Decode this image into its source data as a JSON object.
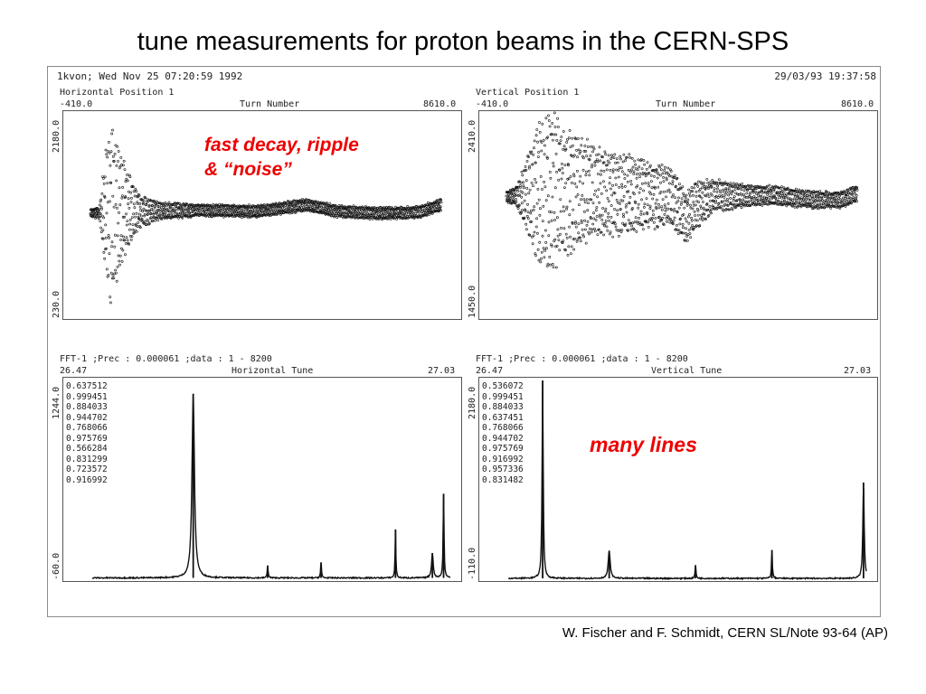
{
  "slide": {
    "title": "tune measurements for proton beams in the CERN-SPS",
    "citation": "W. Fischer and F. Schmidt, CERN SL/Note 93-64 (AP)"
  },
  "figure": {
    "header_left": "1kvon; Wed Nov 25 07:20:59 1992",
    "header_right": "29/03/93 19:37:58"
  },
  "annotations": {
    "top": [
      "fast decay, ripple",
      "& “noise”"
    ],
    "bottom": "many lines"
  },
  "colors": {
    "annotation": "#ee0000",
    "trace": "#111111"
  },
  "chart_data": [
    {
      "type": "scatter",
      "subtitle": "Horizontal Position 1",
      "xlabel": "Turn Number",
      "x_range_labels": [
        "-410.0",
        "8610.0"
      ],
      "y_range_labels": [
        "2180.0",
        "230.0"
      ],
      "xlim": [
        -410,
        8610
      ],
      "ylim": [
        230,
        2180
      ],
      "baseline": 1260,
      "envelope": [
        [
          -410,
          0
        ],
        [
          -200,
          40
        ],
        [
          0,
          60
        ],
        [
          200,
          760
        ],
        [
          300,
          900
        ],
        [
          450,
          700
        ],
        [
          700,
          400
        ],
        [
          1000,
          160
        ],
        [
          1500,
          90
        ],
        [
          2500,
          60
        ],
        [
          3500,
          60
        ],
        [
          5000,
          60
        ],
        [
          6500,
          60
        ],
        [
          8000,
          60
        ],
        [
          8610,
          60
        ]
      ],
      "wander": [
        [
          -410,
          -40
        ],
        [
          1000,
          -20
        ],
        [
          2500,
          -10
        ],
        [
          4000,
          -20
        ],
        [
          5200,
          40
        ],
        [
          6000,
          -20
        ],
        [
          7000,
          -40
        ],
        [
          8000,
          -30
        ],
        [
          8610,
          40
        ]
      ]
    },
    {
      "type": "scatter",
      "subtitle": "Vertical Position 1",
      "xlabel": "Turn Number",
      "x_range_labels": [
        "-410.0",
        "8610.0"
      ],
      "y_range_labels": [
        "2410.0",
        "1450.0"
      ],
      "xlim": [
        -410,
        8610
      ],
      "ylim": [
        1450,
        2410
      ],
      "baseline": 2020,
      "envelope": [
        [
          -410,
          20
        ],
        [
          0,
          40
        ],
        [
          300,
          180
        ],
        [
          700,
          430
        ],
        [
          1200,
          320
        ],
        [
          2000,
          230
        ],
        [
          3000,
          180
        ],
        [
          4000,
          140
        ],
        [
          4500,
          120
        ],
        [
          5000,
          80
        ],
        [
          6000,
          50
        ],
        [
          8000,
          40
        ],
        [
          8610,
          40
        ]
      ],
      "wander": [
        [
          -410,
          -10
        ],
        [
          1000,
          20
        ],
        [
          2500,
          10
        ],
        [
          3900,
          0
        ],
        [
          4300,
          -100
        ],
        [
          4600,
          -40
        ],
        [
          5000,
          0
        ],
        [
          6500,
          0
        ],
        [
          7500,
          -20
        ],
        [
          8200,
          -20
        ],
        [
          8610,
          10
        ]
      ]
    },
    {
      "type": "line",
      "subtitle": "FFT-1 ;Prec : 0.000061 ;data : 1 - 8200",
      "xlabel": "Horizontal Tune",
      "x_range_labels": [
        "26.47",
        "27.03"
      ],
      "y_range_labels": [
        "1244.0",
        "-60.0"
      ],
      "xlim": [
        26.47,
        27.03
      ],
      "ylim": [
        -60,
        1244
      ],
      "noise_floor": -40,
      "peaks": [
        {
          "x": 26.637,
          "y": 1140,
          "w": 0.0022
        },
        {
          "x": 26.75,
          "y": 40,
          "w": 0.0008
        },
        {
          "x": 26.831,
          "y": 60,
          "w": 0.0008
        },
        {
          "x": 26.944,
          "y": 270,
          "w": 0.0007
        },
        {
          "x": 27.0,
          "y": 120,
          "w": 0.0015
        },
        {
          "x": 27.017,
          "y": 500,
          "w": 0.0008
        }
      ],
      "tune_list": [
        "0.637512",
        "0.999451",
        "0.884033",
        "0.944702",
        "0.768066",
        "0.975769",
        "0.566284",
        "0.831299",
        "0.723572",
        "0.916992"
      ]
    },
    {
      "type": "line",
      "subtitle": "FFT-1 ;Prec : 0.000061 ;data : 1 - 8200",
      "xlabel": "Vertical Tune",
      "x_range_labels": [
        "26.47",
        "27.03"
      ],
      "y_range_labels": [
        "2180.0",
        "-110.0"
      ],
      "xlim": [
        26.47,
        27.03
      ],
      "ylim": [
        -110,
        2180
      ],
      "noise_floor": -80,
      "peaks": [
        {
          "x": 26.536,
          "y": 2150,
          "w": 0.001
        },
        {
          "x": 26.637,
          "y": 230,
          "w": 0.0018
        },
        {
          "x": 26.768,
          "y": 70,
          "w": 0.0008
        },
        {
          "x": 26.884,
          "y": 240,
          "w": 0.0008
        },
        {
          "x": 27.023,
          "y": 1000,
          "w": 0.0012
        }
      ],
      "tune_list": [
        "0.536072",
        "0.999451",
        "0.884033",
        "0.637451",
        "0.768066",
        "0.944702",
        "0.975769",
        "0.916992",
        "0.957336",
        "0.831482"
      ]
    }
  ]
}
